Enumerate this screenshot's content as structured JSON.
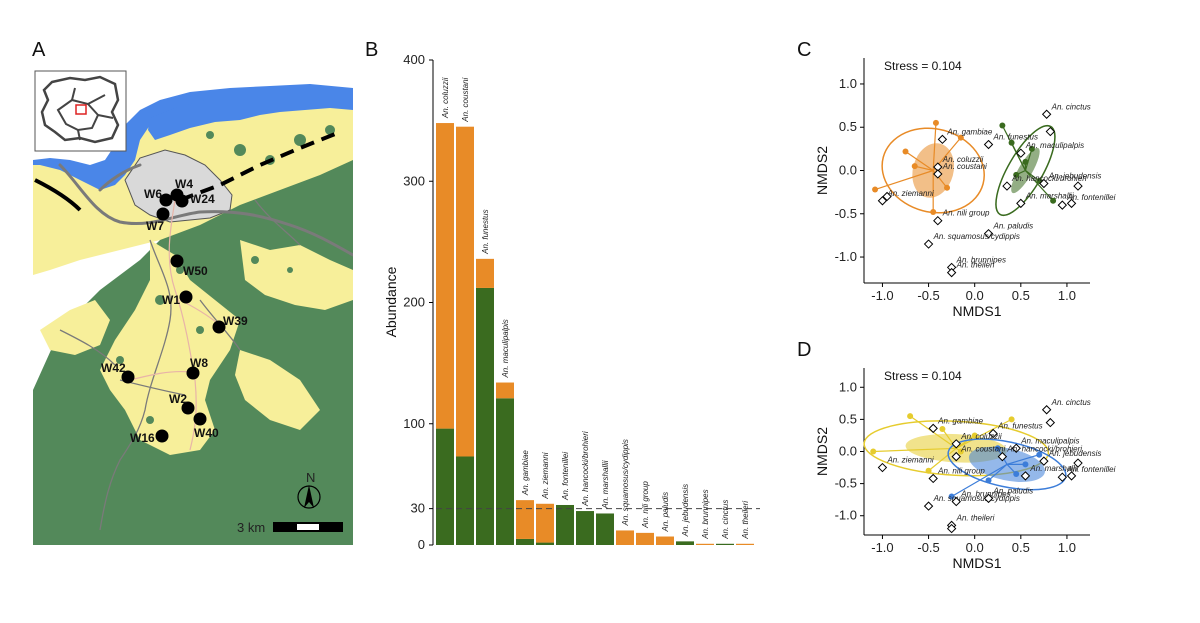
{
  "panels": {
    "a": "A",
    "b": "B",
    "c": "C",
    "d": "D"
  },
  "map": {
    "sites": [
      {
        "id": "W4"
      },
      {
        "id": "W6"
      },
      {
        "id": "W24"
      },
      {
        "id": "W7"
      },
      {
        "id": "W50"
      },
      {
        "id": "W1"
      },
      {
        "id": "W39"
      },
      {
        "id": "W42"
      },
      {
        "id": "W8"
      },
      {
        "id": "W2"
      },
      {
        "id": "W40"
      },
      {
        "id": "W16"
      }
    ],
    "scale_label": "3 km",
    "north_label": "N",
    "colors": {
      "forest": "#53895a",
      "savanna": "#f7ef9a",
      "water": "#4a86e8",
      "urban": "#d9d9d9",
      "river": "#7a7a7a"
    }
  },
  "chart_data": [
    {
      "type": "bar",
      "stacked": true,
      "title": "",
      "ylabel": "Abundance",
      "ylim": [
        0,
        400
      ],
      "yticks": [
        0,
        30,
        100,
        200,
        300,
        400
      ],
      "reference_line": 30,
      "categories": [
        "An. coluzzii",
        "An. coustani",
        "An. funestus",
        "An. maculipalpis",
        "An. gambiae",
        "An. ziemanni",
        "An. fontenillei",
        "An. hancocki/brohieri",
        "An. marshallii",
        "An. squamosus/cydippis",
        "An. nili group",
        "An. paludis",
        "An. jebudensis",
        "An. brunnipes",
        "An. cinctus",
        "An. theileri"
      ],
      "series": [
        {
          "name": "green",
          "color": "#3a6b1f",
          "values": [
            96,
            73,
            212,
            121,
            5,
            2,
            33,
            28,
            26,
            0,
            0,
            0,
            3,
            0,
            1,
            0
          ]
        },
        {
          "name": "orange",
          "color": "#e88b27",
          "values": [
            252,
            272,
            24,
            13,
            32,
            32,
            0,
            0,
            0,
            12,
            10,
            7,
            0,
            1,
            0,
            1
          ]
        }
      ]
    },
    {
      "type": "scatter",
      "panel": "C",
      "stress": "Stress = 0.104",
      "xlabel": "NMDS1",
      "ylabel": "NMDS2",
      "xlim": [
        -1.2,
        1.25
      ],
      "ylim": [
        -1.3,
        1.3
      ],
      "xticks": [
        -1.0,
        -0.5,
        0.0,
        0.5,
        1.0
      ],
      "yticks": [
        -1.0,
        -0.5,
        0.0,
        0.5,
        1.0
      ],
      "xtick_labels": [
        "-1.0",
        "-0.5",
        "0.0",
        "0.5",
        "1.0"
      ],
      "ytick_labels": [
        "-1.0",
        "-0.5",
        "0.0",
        "0.5",
        "1.0"
      ],
      "species": [
        {
          "name": "An. gambiae",
          "x": -0.35,
          "y": 0.36
        },
        {
          "name": "An. coluzzii",
          "x": -0.4,
          "y": 0.04
        },
        {
          "name": "An. coustani",
          "x": -0.4,
          "y": -0.04
        },
        {
          "name": "An. funestus",
          "x": 0.15,
          "y": 0.3
        },
        {
          "name": "An. ziemanni",
          "x": -1.0,
          "y": -0.35
        },
        {
          "name": "An. nili group",
          "x": -0.4,
          "y": -0.58
        },
        {
          "name": "An. hancocki/brohieri",
          "x": 0.35,
          "y": -0.18
        },
        {
          "name": "An. cinctus",
          "x": 0.78,
          "y": 0.65
        },
        {
          "name": "An. maculipalpis",
          "x": 0.5,
          "y": 0.2
        },
        {
          "name": "An. jebudensis",
          "x": 0.75,
          "y": -0.15
        },
        {
          "name": "An. marshallii",
          "x": 0.5,
          "y": -0.38
        },
        {
          "name": "An. fontenillei",
          "x": 0.95,
          "y": -0.4
        },
        {
          "name": "An. paludis",
          "x": 0.15,
          "y": -0.73
        },
        {
          "name": "An. squamosus/cydippis",
          "x": -0.5,
          "y": -0.85
        },
        {
          "name": "An. brunnipes",
          "x": -0.25,
          "y": -1.12
        },
        {
          "name": "An. theileri",
          "x": -0.25,
          "y": -1.18
        },
        {
          "name": "",
          "x": 1.12,
          "y": -0.18
        },
        {
          "name": "",
          "x": 1.05,
          "y": -0.38
        },
        {
          "name": "",
          "x": 0.82,
          "y": 0.45
        },
        {
          "name": "",
          "x": -0.95,
          "y": -0.3
        }
      ],
      "groups": [
        {
          "name": "orange",
          "color": "#e88b27",
          "centroid": [
            -0.45,
            0.0
          ],
          "ellipse_rx": 0.56,
          "ellipse_ry": 0.48,
          "angle": 15,
          "core_rx": 0.22,
          "core_ry": 0.32,
          "sites": [
            [
              -0.42,
              0.55
            ],
            [
              -0.75,
              0.22
            ],
            [
              -1.08,
              -0.22
            ],
            [
              -0.45,
              -0.48
            ],
            [
              -0.15,
              0.38
            ],
            [
              -0.65,
              0.05
            ],
            [
              -0.3,
              -0.2
            ]
          ]
        },
        {
          "name": "green",
          "color": "#3a6b1f",
          "centroid": [
            0.55,
            0.0
          ],
          "ellipse_rx": 0.55,
          "ellipse_ry": 0.2,
          "angle": -60,
          "core_rx": 0.28,
          "core_ry": 0.08,
          "sites": [
            [
              0.3,
              0.52
            ],
            [
              0.4,
              0.32
            ],
            [
              0.55,
              0.1
            ],
            [
              0.7,
              -0.12
            ],
            [
              0.85,
              -0.35
            ],
            [
              0.45,
              -0.05
            ],
            [
              0.62,
              0.25
            ]
          ]
        }
      ]
    },
    {
      "type": "scatter",
      "panel": "D",
      "stress": "Stress = 0.104",
      "xlabel": "NMDS1",
      "ylabel": "NMDS2",
      "xlim": [
        -1.2,
        1.25
      ],
      "ylim": [
        -1.3,
        1.3
      ],
      "xticks": [
        -1.0,
        -0.5,
        0.0,
        0.5,
        1.0
      ],
      "yticks": [
        -1.0,
        -0.5,
        0.0,
        0.5,
        1.0
      ],
      "xtick_labels": [
        "-1.0",
        "-0.5",
        "0.0",
        "0.5",
        "1.0"
      ],
      "ytick_labels": [
        "-1.0",
        "-0.5",
        "0.0",
        "0.5",
        "1.0"
      ],
      "species": [
        {
          "name": "An. gambiae",
          "x": -0.45,
          "y": 0.36
        },
        {
          "name": "An. cinctus",
          "x": 0.78,
          "y": 0.65
        },
        {
          "name": "An. funestus",
          "x": 0.2,
          "y": 0.28
        },
        {
          "name": "An. coluzzii",
          "x": -0.2,
          "y": 0.12
        },
        {
          "name": "An. maculipalpis",
          "x": 0.45,
          "y": 0.05
        },
        {
          "name": "An. ziemanni",
          "x": -1.0,
          "y": -0.25
        },
        {
          "name": "An. coustani",
          "x": -0.2,
          "y": -0.08
        },
        {
          "name": "An. hancocki/brohieri",
          "x": 0.3,
          "y": -0.08
        },
        {
          "name": "An. jebudensis",
          "x": 0.75,
          "y": -0.15
        },
        {
          "name": "An. nili group",
          "x": -0.45,
          "y": -0.42
        },
        {
          "name": "An. marshallii",
          "x": 0.55,
          "y": -0.38
        },
        {
          "name": "An. fontenillei",
          "x": 0.95,
          "y": -0.4
        },
        {
          "name": "An. squamosus/cydippis",
          "x": -0.5,
          "y": -0.85
        },
        {
          "name": "An. paludis",
          "x": 0.15,
          "y": -0.73
        },
        {
          "name": "An. brunnipes",
          "x": -0.2,
          "y": -0.78
        },
        {
          "name": "An. theileri",
          "x": -0.25,
          "y": -1.15
        },
        {
          "name": "",
          "x": 1.12,
          "y": -0.18
        },
        {
          "name": "",
          "x": 1.05,
          "y": -0.38
        },
        {
          "name": "",
          "x": 0.82,
          "y": 0.45
        },
        {
          "name": "",
          "x": -0.25,
          "y": -1.2
        }
      ],
      "groups": [
        {
          "name": "yellow",
          "color": "#e6cc2e",
          "centroid": [
            -0.2,
            0.05
          ],
          "ellipse_rx": 1.0,
          "ellipse_ry": 0.42,
          "angle": 3,
          "core_rx": 0.55,
          "core_ry": 0.22,
          "sites": [
            [
              -0.7,
              0.55
            ],
            [
              -0.35,
              0.35
            ],
            [
              -1.1,
              0.0
            ],
            [
              -0.5,
              -0.3
            ],
            [
              0.0,
              0.25
            ],
            [
              0.4,
              0.5
            ],
            [
              -0.15,
              0.0
            ]
          ]
        },
        {
          "name": "blue",
          "color": "#3c7dd9",
          "centroid": [
            0.35,
            -0.2
          ],
          "ellipse_rx": 0.65,
          "ellipse_ry": 0.35,
          "angle": 12,
          "core_rx": 0.42,
          "core_ry": 0.25,
          "sites": [
            [
              -0.25,
              -0.7
            ],
            [
              0.15,
              -0.45
            ],
            [
              0.55,
              -0.2
            ],
            [
              0.45,
              -0.35
            ],
            [
              0.25,
              0.05
            ],
            [
              0.7,
              -0.05
            ]
          ]
        }
      ]
    }
  ]
}
